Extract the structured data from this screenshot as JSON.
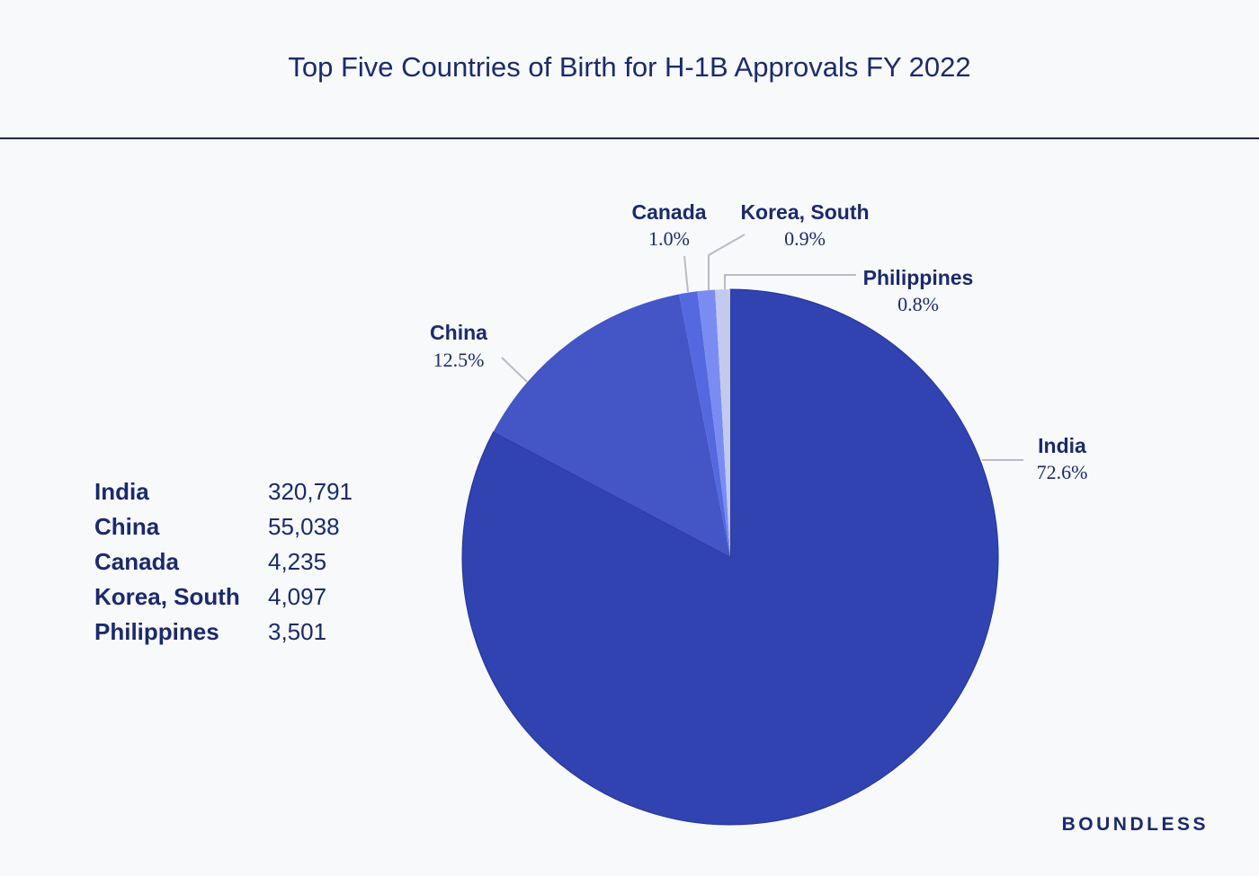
{
  "brand": "BOUNDLESS",
  "chart_data": {
    "type": "pie",
    "title": "Top Five Countries of Birth for H-1B Approvals FY 2022",
    "categories": [
      "India",
      "China",
      "Canada",
      "Korea, South",
      "Philippines"
    ],
    "values": [
      320791,
      55038,
      4235,
      4097,
      3501
    ],
    "values_display": [
      "320,791",
      "55,038",
      "4,235",
      "4,097",
      "3,501"
    ],
    "percents": [
      72.6,
      12.5,
      1.0,
      0.9,
      0.8
    ],
    "percent_labels": [
      "72.6%",
      "12.5%",
      "1.0%",
      "0.9%",
      "0.8%"
    ],
    "colors": [
      "#3143b0",
      "#4455c6",
      "#5468e0",
      "#7a8cf2",
      "#c3caee"
    ],
    "legend_placement": "left"
  }
}
